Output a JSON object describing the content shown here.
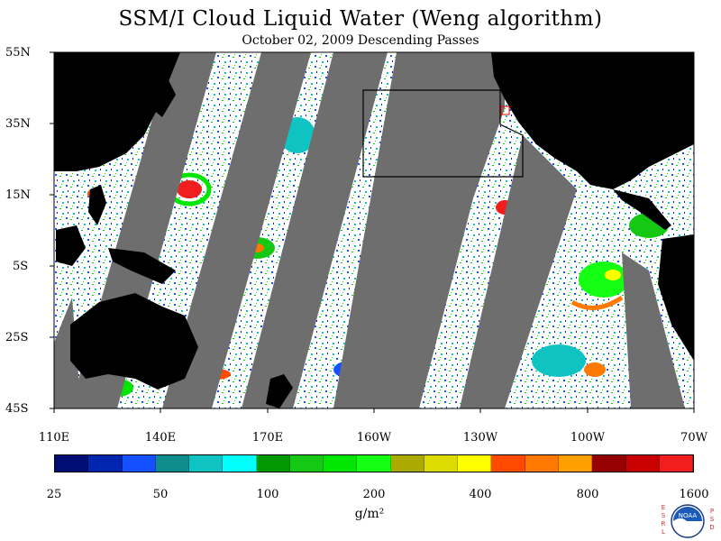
{
  "header": {
    "title": "SSM/I Cloud Liquid Water (Weng algorithm)",
    "subtitle": "October 02, 2009  Descending Passes"
  },
  "map": {
    "lat_labels": [
      "55N",
      "35N",
      "15N",
      "5S",
      "25S",
      "45S"
    ],
    "lon_labels": [
      "110E",
      "140E",
      "170E",
      "160W",
      "130W",
      "100W",
      "70W"
    ],
    "colors": {
      "ocean_clear": "#ffffff",
      "land": "#000000",
      "no_data_gap": "#6e6e6e",
      "box_outline": "#000000",
      "marker": "#ff0000"
    }
  },
  "colorbar": {
    "colors": [
      "#000e73",
      "#0026b0",
      "#1450ff",
      "#0f8c8c",
      "#0fc3c3",
      "#00ffff",
      "#009a00",
      "#14c814",
      "#00e600",
      "#14ff14",
      "#aaaa00",
      "#dcdc00",
      "#ffff00",
      "#ff4a00",
      "#ff7800",
      "#ffa000",
      "#960000",
      "#c80000",
      "#f01e1e"
    ],
    "labels": [
      "25",
      "50",
      "100",
      "200",
      "400",
      "800",
      "1600"
    ],
    "units": "g/m²"
  },
  "logo": {
    "left_letters": [
      "E",
      "S",
      "R",
      "L"
    ],
    "right_letters": [
      "P",
      "S",
      "D"
    ],
    "badge_text": "NOAA"
  }
}
